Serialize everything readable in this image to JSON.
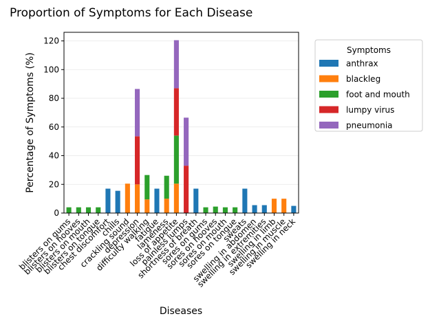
{
  "chart_data": {
    "type": "bar",
    "stacked": true,
    "title": "Proportion of Symptoms for Each Disease",
    "xlabel": "Diseases",
    "ylabel": "Percentage of Symptoms (%)",
    "ylim": [
      0,
      126
    ],
    "yticks": [
      0,
      20,
      40,
      60,
      80,
      100,
      120
    ],
    "grid": "horizontal",
    "legend": {
      "title": "Symptoms",
      "placement": "outside-top-right"
    },
    "categories": [
      "blisters on gums",
      "blisters on hooves",
      "blisters on mouth",
      "blisters on tongue",
      "chest discomfort",
      "chills",
      "crackling sound",
      "depression",
      "difficulty walking",
      "fatigue",
      "lameness",
      "loss of appetite",
      "painless lumps",
      "shortness of breath",
      "sores on gums",
      "sores on hooves",
      "sores on mouth",
      "sores on tongue",
      "sweats",
      "swelling in abdomen",
      "swelling in extremities",
      "swelling in limb",
      "swelling in muscle",
      "swelling in neck"
    ],
    "series": [
      {
        "name": "anthrax",
        "color": "#1f77b4",
        "values": [
          0,
          0,
          0,
          0,
          17,
          15.5,
          0,
          0,
          0,
          17,
          0,
          0,
          0,
          17,
          0,
          0,
          0,
          0,
          17,
          5.5,
          5.5,
          0,
          0,
          5
        ]
      },
      {
        "name": "blackleg",
        "color": "#ff7f0e",
        "values": [
          0,
          0,
          0,
          0,
          0,
          0,
          20.5,
          20,
          9.5,
          0,
          10,
          20.5,
          0,
          0,
          0,
          0,
          0,
          0,
          0,
          0,
          0,
          10,
          10,
          0
        ]
      },
      {
        "name": "foot and mouth",
        "color": "#2ca02c",
        "values": [
          4,
          4,
          4,
          4,
          0,
          0,
          0,
          0,
          17,
          0,
          16,
          33.5,
          0,
          0,
          4,
          4.5,
          4,
          4,
          0,
          0,
          0,
          0,
          0,
          0
        ]
      },
      {
        "name": "lumpy virus",
        "color": "#d62728",
        "values": [
          0,
          0,
          0,
          0,
          0,
          0,
          0,
          33.5,
          0,
          0,
          0,
          33,
          33,
          0,
          0,
          0,
          0,
          0,
          0,
          0,
          0,
          0,
          0,
          0
        ]
      },
      {
        "name": "pneumonia",
        "color": "#9467bd",
        "values": [
          0,
          0,
          0,
          0,
          0,
          0,
          0,
          33,
          0,
          0,
          0,
          33.5,
          33.5,
          0,
          0,
          0,
          0,
          0,
          0,
          0,
          0,
          0,
          0,
          0
        ]
      }
    ]
  }
}
